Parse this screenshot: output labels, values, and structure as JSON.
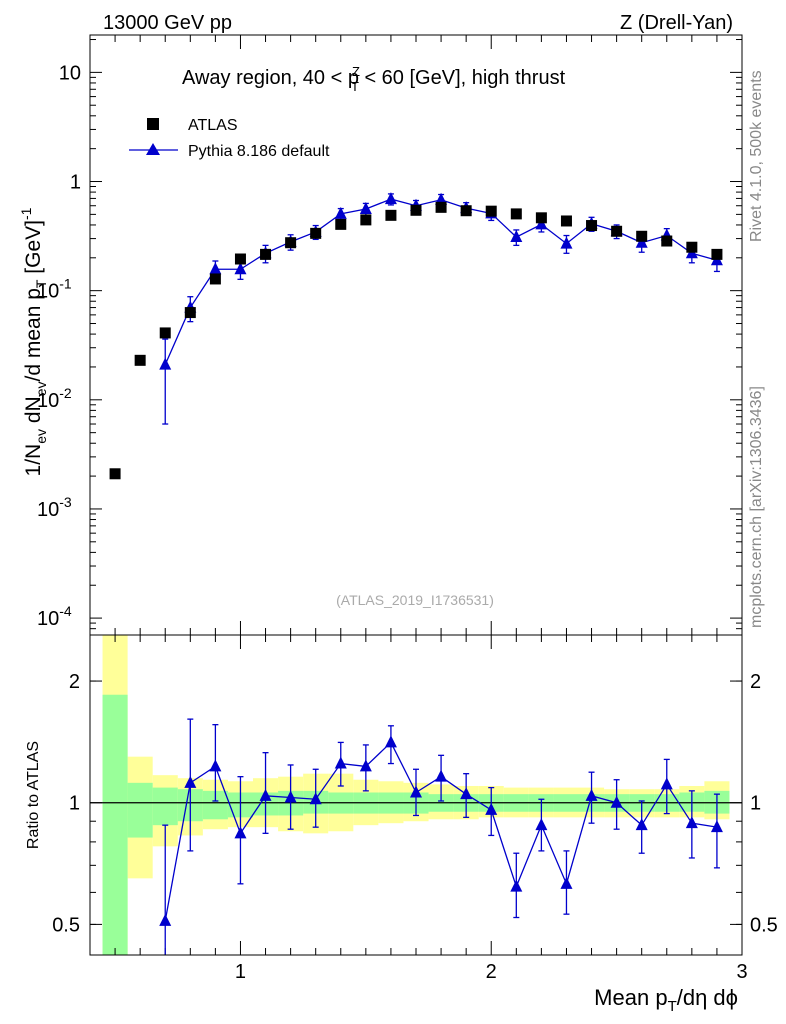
{
  "header": {
    "left_title": "13000 GeV pp",
    "right_title": "Z (Drell-Yan)",
    "region_label_prefix": "Away region, 40 < p",
    "region_label_sup": "Z",
    "region_label_sub": "T",
    "region_label_suffix": " < 60 [GeV], high thrust",
    "analysis_id": "(ATLAS_2019_I1736531)"
  },
  "side_labels": {
    "rivet": "Rivet 4.1.0,  500k events",
    "mcplots": "mcplots.cern.ch [arXiv:1306.3436]"
  },
  "axis_labels": {
    "y_main": "1/N_ev dN_ev/d mean p_T [GeV]^-1",
    "y_ratio": "Ratio to ATLAS",
    "x": "Mean p_T/dη dϕ"
  },
  "legend": {
    "data_label": "ATLAS",
    "mc_label": "Pythia 8.186 default"
  },
  "colors": {
    "mc": "#0000cc",
    "data": "#000000",
    "band_inner": "#99ff99",
    "band_outer": "#ffff99"
  },
  "chart_data": [
    {
      "type": "scatter",
      "title": "Away region, 40 < pT^Z < 60 [GeV], high thrust",
      "xlabel": "Mean pT/dη dϕ",
      "ylabel": "1/Nev dNev/d mean pT [GeV]^-1",
      "yscale": "log",
      "xlim": [
        0.4,
        3.0
      ],
      "ylim": [
        7e-05,
        22
      ],
      "y_ticks": [
        {
          "value": 0.0001,
          "mant": "10",
          "exp": "-4"
        },
        {
          "value": 0.001,
          "mant": "10",
          "exp": "-3"
        },
        {
          "value": 0.01,
          "mant": "10",
          "exp": "-2"
        },
        {
          "value": 0.1,
          "mant": "10",
          "exp": "-1"
        },
        {
          "value": 1,
          "label": "1"
        },
        {
          "value": 10,
          "label": "10"
        }
      ],
      "series": [
        {
          "name": "ATLAS",
          "marker": "square",
          "x": [
            0.5,
            0.6,
            0.7,
            0.8,
            0.9,
            1.0,
            1.1,
            1.2,
            1.3,
            1.4,
            1.5,
            1.6,
            1.7,
            1.8,
            1.9,
            2.0,
            2.1,
            2.2,
            2.3,
            2.4,
            2.5,
            2.6,
            2.7,
            2.8,
            2.9
          ],
          "y": [
            0.0021,
            0.023,
            0.041,
            0.063,
            0.128,
            0.195,
            0.215,
            0.275,
            0.335,
            0.405,
            0.445,
            0.49,
            0.545,
            0.58,
            0.54,
            0.535,
            0.505,
            0.465,
            0.435,
            0.395,
            0.35,
            0.315,
            0.285,
            0.25,
            0.215
          ]
        },
        {
          "name": "Pythia 8.186 default",
          "marker": "triangle",
          "x": [
            0.7,
            0.8,
            0.9,
            1.0,
            1.1,
            1.2,
            1.3,
            1.4,
            1.5,
            1.6,
            1.7,
            1.8,
            1.9,
            2.0,
            2.1,
            2.2,
            2.3,
            2.4,
            2.5,
            2.6,
            2.7,
            2.8,
            2.9
          ],
          "y": [
            0.021,
            0.07,
            0.157,
            0.157,
            0.22,
            0.28,
            0.345,
            0.505,
            0.56,
            0.69,
            0.6,
            0.68,
            0.57,
            0.51,
            0.31,
            0.405,
            0.27,
            0.41,
            0.35,
            0.275,
            0.32,
            0.22,
            0.19
          ],
          "y_err_low": [
            0.015,
            0.018,
            0.03,
            0.03,
            0.04,
            0.045,
            0.05,
            0.06,
            0.07,
            0.08,
            0.07,
            0.08,
            0.07,
            0.07,
            0.05,
            0.06,
            0.05,
            0.06,
            0.05,
            0.05,
            0.05,
            0.04,
            0.04
          ],
          "y_err_high": [
            0.015,
            0.018,
            0.03,
            0.03,
            0.04,
            0.045,
            0.05,
            0.06,
            0.07,
            0.08,
            0.07,
            0.08,
            0.07,
            0.07,
            0.05,
            0.06,
            0.05,
            0.06,
            0.05,
            0.05,
            0.05,
            0.04,
            0.04
          ]
        }
      ]
    },
    {
      "type": "scatter",
      "title": "",
      "xlabel": "Mean pT/dη dϕ",
      "ylabel": "Ratio to ATLAS",
      "yscale": "log",
      "xlim": [
        0.4,
        3.0
      ],
      "ylim": [
        0.42,
        2.6
      ],
      "x_ticks": [
        1,
        2,
        3
      ],
      "y_ticks": [
        0.5,
        1,
        2
      ],
      "reference_line": 1,
      "uncertainty_bands": {
        "bin_edges": [
          0.45,
          0.55,
          0.65,
          0.75,
          0.85,
          0.95,
          1.05,
          1.15,
          1.25,
          1.35,
          1.45,
          1.55,
          1.65,
          1.75,
          1.85,
          1.95,
          2.05,
          2.15,
          2.25,
          2.35,
          2.45,
          2.55,
          2.65,
          2.75,
          2.85,
          2.95
        ],
        "inner_low": [
          0.15,
          0.82,
          0.88,
          0.9,
          0.91,
          0.92,
          0.93,
          0.93,
          0.94,
          0.94,
          0.94,
          0.94,
          0.94,
          0.95,
          0.95,
          0.95,
          0.95,
          0.95,
          0.95,
          0.95,
          0.95,
          0.95,
          0.95,
          0.95,
          0.94
        ],
        "inner_high": [
          1.85,
          1.12,
          1.09,
          1.08,
          1.07,
          1.06,
          1.06,
          1.07,
          1.07,
          1.06,
          1.06,
          1.06,
          1.06,
          1.05,
          1.05,
          1.05,
          1.05,
          1.05,
          1.05,
          1.05,
          1.05,
          1.05,
          1.05,
          1.06,
          1.07
        ],
        "outer_low": [
          0.1,
          0.65,
          0.78,
          0.83,
          0.86,
          0.87,
          0.87,
          0.85,
          0.84,
          0.85,
          0.88,
          0.89,
          0.9,
          0.91,
          0.91,
          0.92,
          0.92,
          0.92,
          0.92,
          0.92,
          0.92,
          0.92,
          0.92,
          0.92,
          0.91
        ],
        "outer_high": [
          2.6,
          1.3,
          1.17,
          1.15,
          1.14,
          1.13,
          1.15,
          1.16,
          1.18,
          1.18,
          1.14,
          1.13,
          1.12,
          1.11,
          1.1,
          1.1,
          1.09,
          1.09,
          1.09,
          1.09,
          1.08,
          1.08,
          1.08,
          1.1,
          1.13
        ]
      },
      "series": [
        {
          "name": "Pythia 8.186 / ATLAS",
          "marker": "triangle",
          "x": [
            0.7,
            0.8,
            0.9,
            1.0,
            1.1,
            1.2,
            1.3,
            1.4,
            1.5,
            1.6,
            1.7,
            1.8,
            1.9,
            2.0,
            2.1,
            2.2,
            2.3,
            2.4,
            2.5,
            2.6,
            2.7,
            2.8,
            2.9
          ],
          "y": [
            0.51,
            1.12,
            1.23,
            0.84,
            1.04,
            1.03,
            1.02,
            1.25,
            1.23,
            1.41,
            1.06,
            1.16,
            1.05,
            0.96,
            0.62,
            0.88,
            0.63,
            1.04,
            1.0,
            0.88,
            1.11,
            0.89,
            0.87
          ],
          "y_err_low": [
            0.37,
            0.36,
            0.22,
            0.21,
            0.2,
            0.17,
            0.15,
            0.15,
            0.16,
            0.16,
            0.13,
            0.15,
            0.13,
            0.13,
            0.1,
            0.12,
            0.1,
            0.15,
            0.14,
            0.13,
            0.17,
            0.16,
            0.18
          ],
          "y_err_high": [
            0.37,
            0.49,
            0.33,
            0.32,
            0.29,
            0.21,
            0.19,
            0.16,
            0.16,
            0.14,
            0.15,
            0.15,
            0.13,
            0.13,
            0.13,
            0.14,
            0.13,
            0.15,
            0.14,
            0.13,
            0.17,
            0.18,
            0.18
          ]
        }
      ]
    }
  ]
}
